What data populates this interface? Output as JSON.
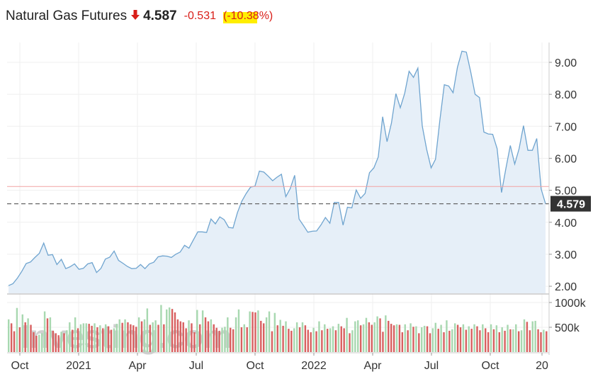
{
  "header": {
    "title": "Natural Gas Futures",
    "price": "4.587",
    "change": "-0.531",
    "change_pct": "(-10.38%)",
    "direction_icon": "down-arrow-icon"
  },
  "colors": {
    "line": "#6fa4cf",
    "area": "#e6eff8",
    "down": "#d86060",
    "up": "#a8d8b0",
    "prev_close": "#f2a3a3",
    "current": "#666666",
    "label_bg": "#333333",
    "header_red": "#d91e18"
  },
  "chart_data": {
    "type": "area",
    "price_axis": {
      "ticks": [
        2,
        3,
        4,
        5,
        6,
        7,
        8,
        9
      ],
      "tick_labels": [
        "2.00",
        "3.00",
        "4.00",
        "5.00",
        "6.00",
        "7.00",
        "8.00",
        "9.00"
      ]
    },
    "volume_axis": {
      "ticks": [
        500000,
        1000000
      ],
      "tick_labels": [
        "500k",
        "1000k"
      ]
    },
    "x_axis": {
      "tick_labels": [
        "Oct",
        "2021",
        "Apr",
        "Jul",
        "Oct",
        "2022",
        "Apr",
        "Jul",
        "Oct",
        "20"
      ]
    },
    "current_value": 4.579,
    "current_label": "4.579",
    "prev_close": 5.12,
    "watermark": "Investing.com",
    "series": [
      {
        "values": [
          2.02,
          2.08,
          2.25,
          2.46,
          2.71,
          2.76,
          2.9,
          3.03,
          3.35,
          2.97,
          2.99,
          2.68,
          2.84,
          2.55,
          2.61,
          2.7,
          2.53,
          2.56,
          2.7,
          2.74,
          2.43,
          2.56,
          2.85,
          2.91,
          3.1,
          2.81,
          2.72,
          2.62,
          2.55,
          2.56,
          2.68,
          2.55,
          2.7,
          2.75,
          2.92,
          2.95,
          2.94,
          2.9,
          3.0,
          3.07,
          3.28,
          3.19,
          3.45,
          3.7,
          3.7,
          3.68,
          4.1,
          3.95,
          4.17,
          4.08,
          3.84,
          3.82,
          4.3,
          4.66,
          4.9,
          5.1,
          5.13,
          5.6,
          5.57,
          5.44,
          5.3,
          5.41,
          5.5,
          4.8,
          5.05,
          5.47,
          4.1,
          3.9,
          3.69,
          3.72,
          3.73,
          3.92,
          4.15,
          3.97,
          4.62,
          4.62,
          3.91,
          4.47,
          4.45,
          5.01,
          4.75,
          4.9,
          5.55,
          5.7,
          6.04,
          7.3,
          6.52,
          7.1,
          8.02,
          7.58,
          8.03,
          8.72,
          8.53,
          8.82,
          7.01,
          6.28,
          5.7,
          5.97,
          7.2,
          8.3,
          8.26,
          8.05,
          8.85,
          9.35,
          9.32,
          8.7,
          8.0,
          7.9,
          6.82,
          6.76,
          6.75,
          6.3,
          4.93,
          5.69,
          6.4,
          5.82,
          6.3,
          7.02,
          6.25,
          6.25,
          6.62,
          5.04,
          4.58
        ]
      },
      {
        "name": "volume",
        "values": [
          660000,
          580000,
          420000,
          890000,
          500000,
          760000,
          600000,
          680000,
          550000,
          400000,
          330000,
          350000,
          380000,
          820000,
          680000,
          700000,
          430000,
          380000,
          340000,
          410000,
          380000,
          440000,
          600000,
          450000,
          700000,
          480000,
          560000,
          580000,
          580000,
          570000,
          530000,
          580000,
          500000,
          540000,
          480000,
          560000,
          520000,
          450000,
          480000,
          570000,
          660000,
          590000,
          660000,
          600000,
          560000,
          540000,
          510000,
          700000,
          620000,
          660000,
          880000,
          550000,
          600000,
          640000,
          550000,
          950000,
          560000,
          860000,
          900000,
          870000,
          800000,
          660000,
          620000,
          600000,
          480000,
          640000,
          580000,
          400000,
          850000,
          560000,
          840000,
          700000,
          620000,
          660000,
          560000,
          490000,
          430000,
          490000,
          510000,
          700000,
          490000,
          460000,
          700000,
          860000,
          500000,
          560000,
          500000,
          820000,
          810000,
          800000,
          840000,
          630000,
          580000,
          700000,
          820000,
          420000,
          790000,
          540000,
          650000,
          530000,
          620000,
          470000,
          430000,
          480000,
          600000,
          500000,
          600000,
          540000,
          450000,
          400000,
          490000,
          420000,
          620000,
          440000,
          560000,
          470000,
          480000,
          520000,
          440000,
          570000,
          520000,
          480000,
          690000,
          380000,
          440000,
          620000,
          640000,
          540000,
          560000,
          690000,
          600000,
          550000,
          600000,
          720000,
          680000,
          410000,
          740000,
          630000,
          570000,
          540000,
          560000,
          550000,
          400000,
          560000,
          440000,
          580000,
          510000,
          520000,
          380000,
          500000,
          530000,
          520000,
          380000,
          480000,
          590000,
          470000,
          550000,
          400000,
          640000,
          430000,
          460000,
          580000,
          550000,
          500000,
          560000,
          450000,
          520000,
          470000,
          560000,
          520000,
          440000,
          560000,
          480000,
          400000,
          560000,
          460000,
          540000,
          400000,
          500000,
          430000,
          550000,
          460000,
          460000,
          560000,
          420000,
          440000,
          660000,
          610000,
          440000,
          620000,
          630000,
          460000,
          400000,
          450000,
          420000
        ]
      }
    ]
  }
}
